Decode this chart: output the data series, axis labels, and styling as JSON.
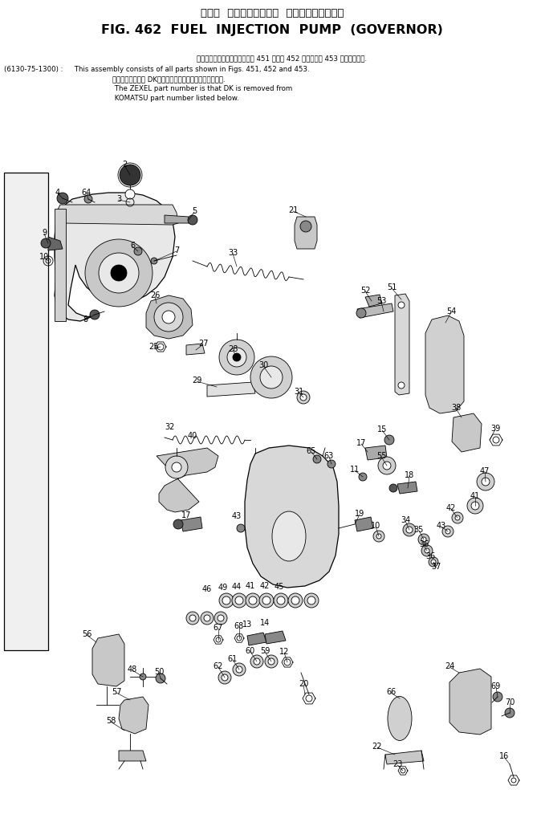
{
  "title_jp": "フェル  インジェクション  ポンプ　ガ　バ　ナ",
  "title_en": "FIG. 462  FUEL  INJECTION  PUMP  (GOVERNOR)",
  "note_jp": "このアセンブリの構成部品は第 451 図，第 452 図および第 453 図を含みます.",
  "note_code": "(6130-75-1300) :",
  "note_en1": " This assembly consists of all parts shown in Figs. 451, 452 and 453.",
  "note_jp2": "品番のメーカ記号 DKを除いたものがゼクセルの品番です.",
  "note_en2": " The ZEXEL part number is that DK is removed from",
  "note_en3": " KOMATSU part number listed below.",
  "bg_color": "#ffffff",
  "line_color": "#000000",
  "text_color": "#000000",
  "fig_width": 6.79,
  "fig_height": 10.14,
  "dpi": 100
}
